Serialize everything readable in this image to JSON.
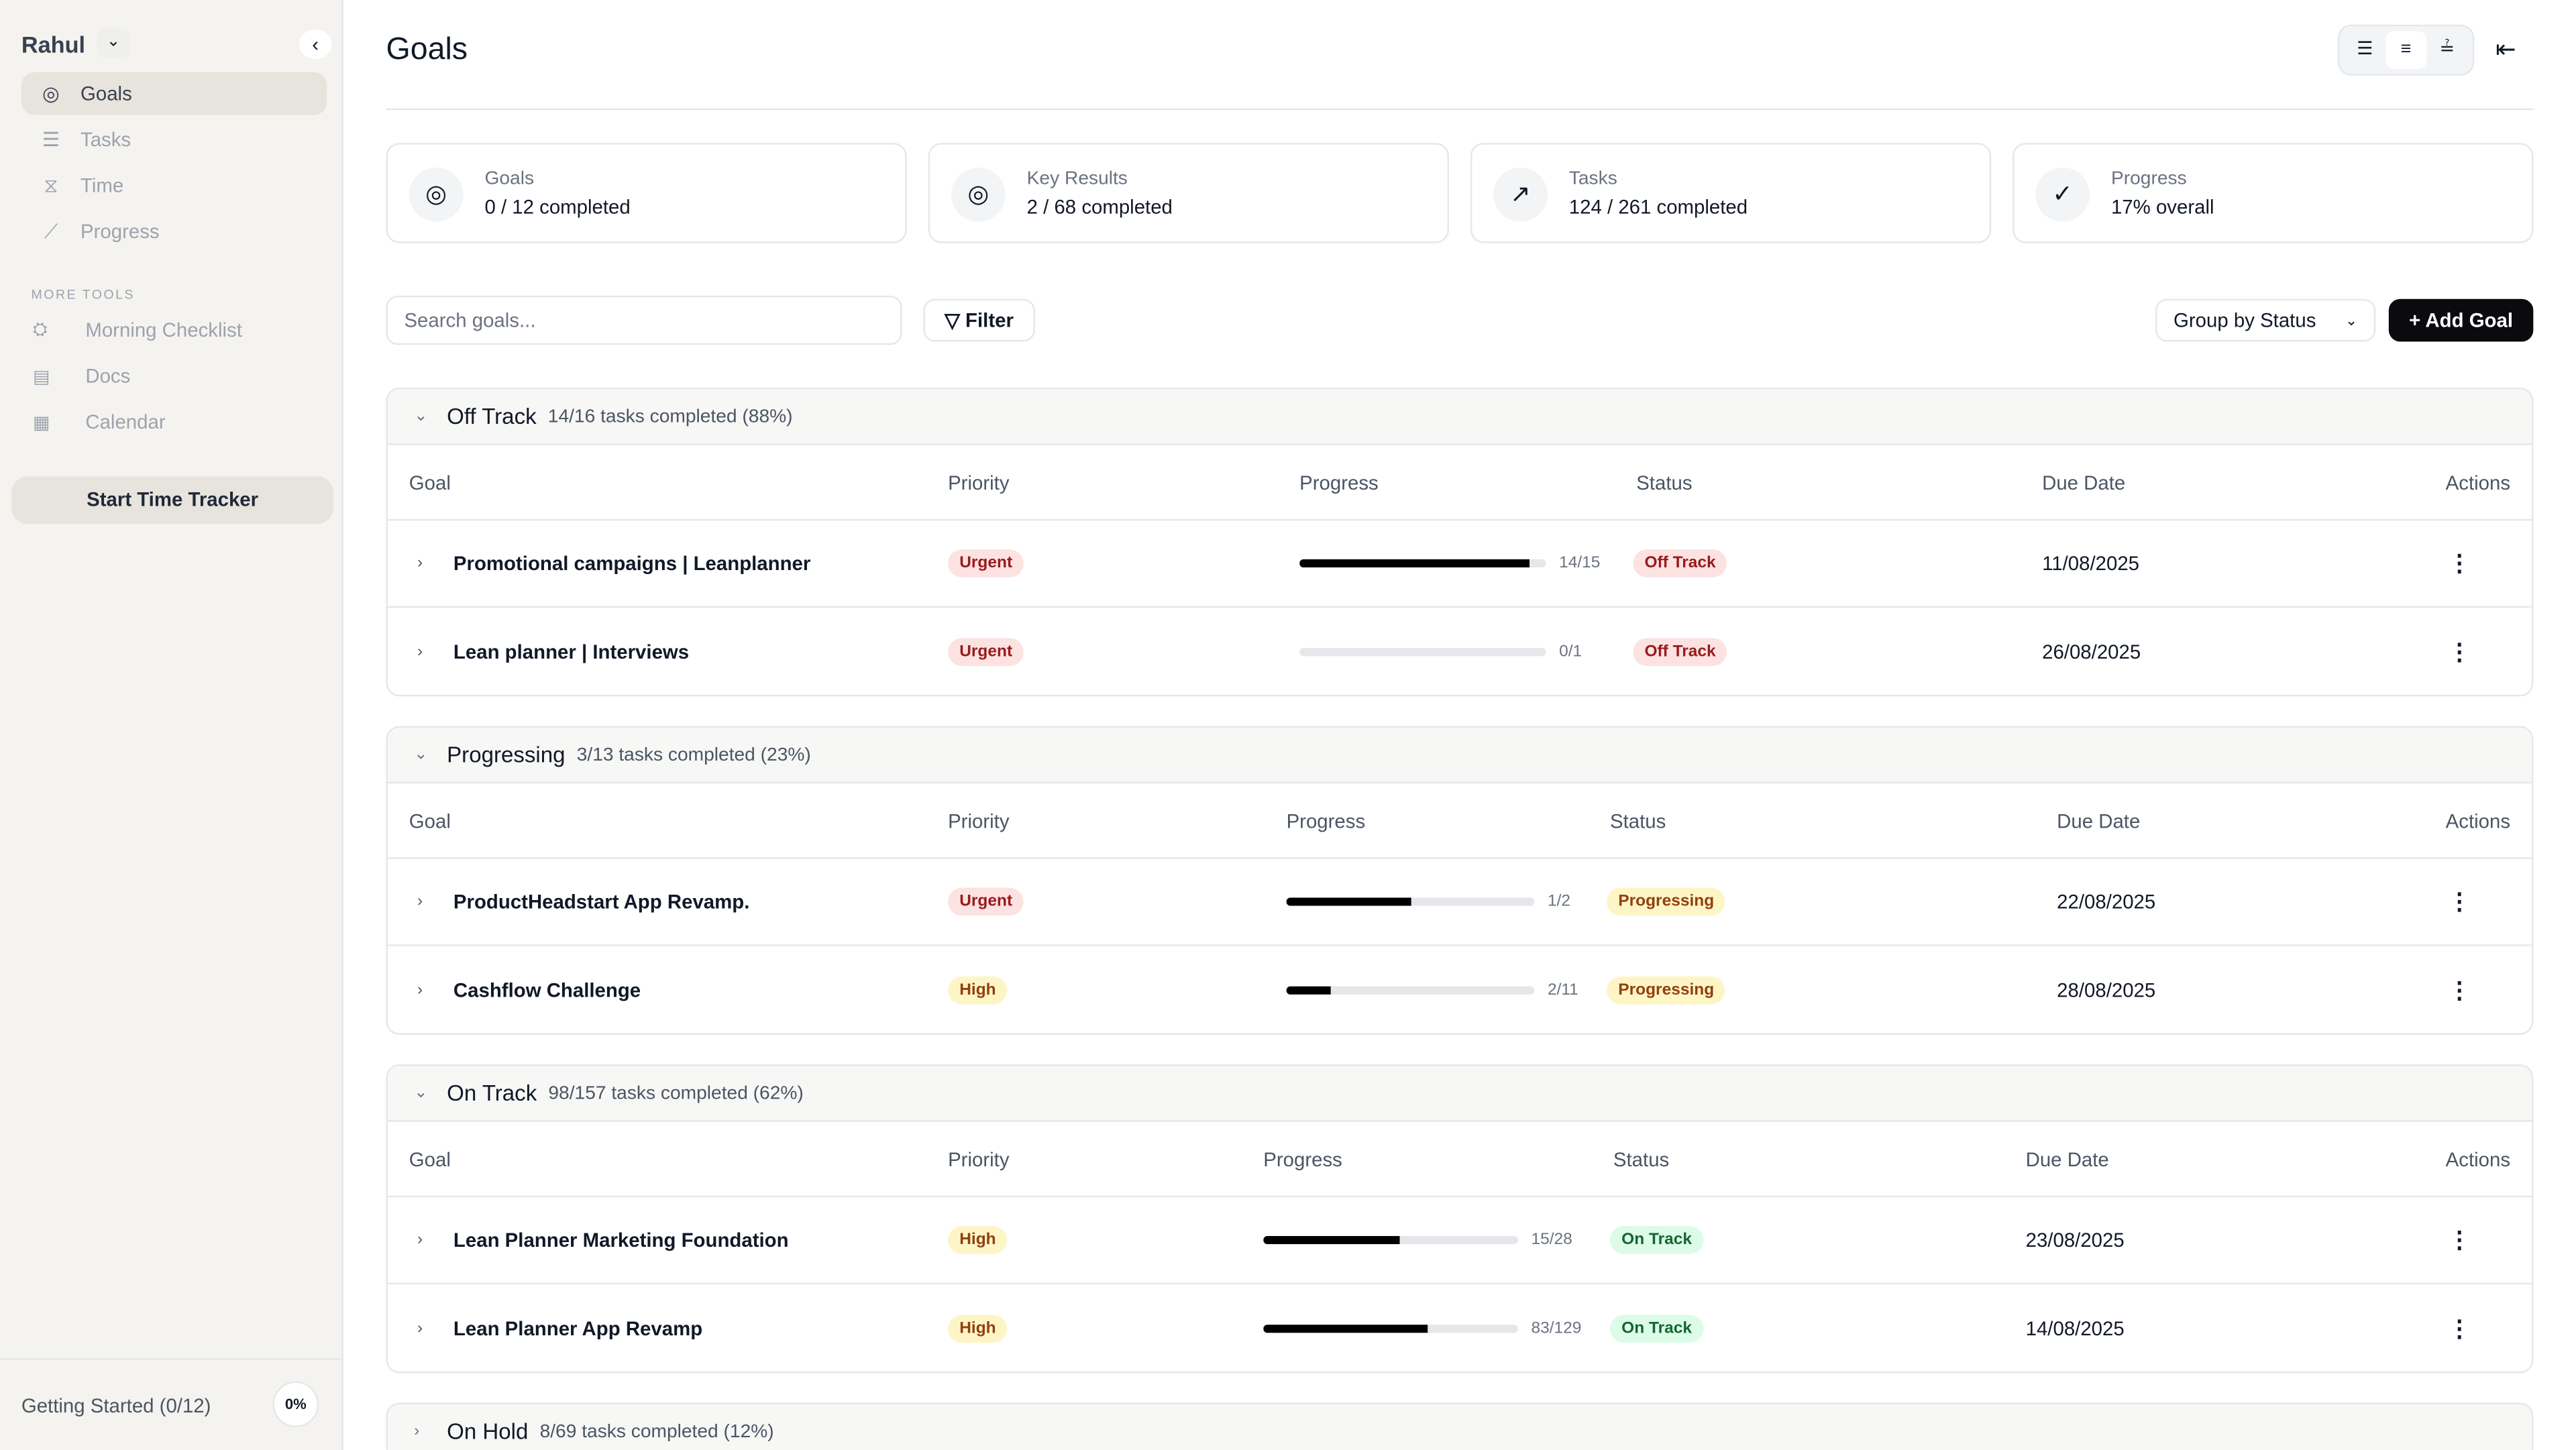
{
  "sidebar": {
    "user": "Rahul",
    "nav": [
      {
        "label": "Goals",
        "icon": "goal-icon",
        "active": true
      },
      {
        "label": "Tasks",
        "icon": "list-icon"
      },
      {
        "label": "Time",
        "icon": "hourglass-icon"
      },
      {
        "label": "Progress",
        "icon": "chart-icon"
      }
    ],
    "more_tools_label": "MORE TOOLS",
    "tools": [
      {
        "label": "Morning Checklist",
        "icon": "sunrise-icon"
      },
      {
        "label": "Docs",
        "icon": "doc-icon"
      },
      {
        "label": "Calendar",
        "icon": "calendar-icon"
      }
    ],
    "tracker_label": "Start Time Tracker",
    "footer": {
      "label": "Getting Started (0/12)",
      "percent": "0%"
    }
  },
  "header": {
    "title": "Goals"
  },
  "stats": [
    {
      "label": "Goals",
      "value": "0 / 12 completed",
      "icon": "target-icon"
    },
    {
      "label": "Key Results",
      "value": "2 / 68 completed",
      "icon": "target-icon"
    },
    {
      "label": "Tasks",
      "value": "124 / 261 completed",
      "icon": "trending-up-icon"
    },
    {
      "label": "Progress",
      "value": "17% overall",
      "icon": "check-circle-icon"
    }
  ],
  "toolbar": {
    "search_placeholder": "Search goals...",
    "filter": "Filter",
    "group": "Group by Status",
    "add": "Add Goal"
  },
  "columns": {
    "goal": "Goal",
    "priority": "Priority",
    "progress": "Progress",
    "status": "Status",
    "due": "Due Date",
    "actions": "Actions"
  },
  "sections": [
    {
      "name": "Off Track",
      "summary": "14/16 tasks completed (88%)",
      "expanded": true,
      "rows": [
        {
          "goal": "Promotional campaigns | Leanplanner",
          "priority": "Urgent",
          "done": 14,
          "total": 15,
          "frac": "14/15",
          "status": "Off Track",
          "due": "11/08/2025"
        },
        {
          "goal": "Lean planner | Interviews",
          "priority": "Urgent",
          "done": 0,
          "total": 1,
          "frac": "0/1",
          "status": "Off Track",
          "due": "26/08/2025"
        }
      ]
    },
    {
      "name": "Progressing",
      "summary": "3/13 tasks completed (23%)",
      "expanded": true,
      "rows": [
        {
          "goal": "ProductHeadstart App Revamp.",
          "priority": "Urgent",
          "done": 1,
          "total": 2,
          "frac": "1/2",
          "status": "Progressing",
          "due": "22/08/2025"
        },
        {
          "goal": "Cashflow Challenge",
          "priority": "High",
          "done": 2,
          "total": 11,
          "frac": "2/11",
          "status": "Progressing",
          "due": "28/08/2025"
        }
      ]
    },
    {
      "name": "On Track",
      "summary": "98/157 tasks completed (62%)",
      "expanded": true,
      "rows": [
        {
          "goal": "Lean Planner Marketing Foundation",
          "priority": "High",
          "done": 15,
          "total": 28,
          "frac": "15/28",
          "status": "On Track",
          "due": "23/08/2025"
        },
        {
          "goal": "Lean Planner App Revamp",
          "priority": "High",
          "done": 83,
          "total": 129,
          "frac": "83/129",
          "status": "On Track",
          "due": "14/08/2025"
        }
      ]
    },
    {
      "name": "On Hold",
      "summary": "8/69 tasks completed (12%)",
      "expanded": false,
      "rows": []
    }
  ]
}
